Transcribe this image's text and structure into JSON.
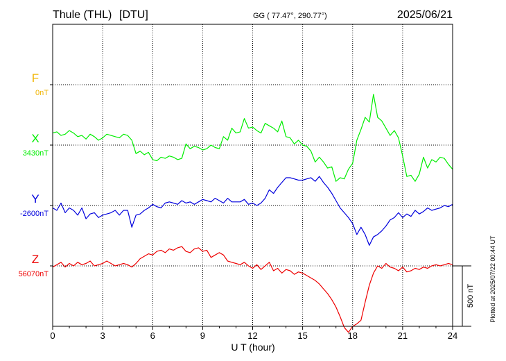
{
  "chart_data": {
    "type": "line",
    "station": "Thule (THL)",
    "institute": "[DTU]",
    "coordinates": "GG ( 77.47°, 290.77°)",
    "date": "2025/06/21",
    "xlabel": "U T (hour)",
    "xlim": [
      0,
      24
    ],
    "xticks": [
      "0",
      "3",
      "6",
      "9",
      "12",
      "15",
      "18",
      "21",
      "24"
    ],
    "scale_bar": {
      "label": "500 nT",
      "value_nT": 500
    },
    "plot_note": "Plotted at 2025/07/22 00:44 UT",
    "grid": true,
    "series": [
      {
        "name": "F",
        "baseline": "0nT",
        "color": "#f0b400",
        "values": []
      },
      {
        "name": "X",
        "baseline": "3430nT",
        "color": "#00ee00",
        "x": [
          0,
          0.25,
          0.5,
          0.75,
          1,
          1.25,
          1.5,
          1.75,
          2,
          2.25,
          2.5,
          2.75,
          3,
          3.25,
          3.5,
          3.75,
          4,
          4.25,
          4.5,
          4.75,
          5,
          5.25,
          5.5,
          5.75,
          6,
          6.25,
          6.5,
          6.75,
          7,
          7.25,
          7.5,
          7.75,
          8,
          8.25,
          8.5,
          8.75,
          9,
          9.25,
          9.5,
          9.75,
          10,
          10.25,
          10.5,
          10.75,
          11,
          11.25,
          11.5,
          11.75,
          12,
          12.25,
          12.5,
          12.75,
          13,
          13.25,
          13.5,
          13.75,
          14,
          14.25,
          14.5,
          14.75,
          15,
          15.25,
          15.5,
          15.75,
          16,
          16.25,
          16.5,
          16.75,
          17,
          17.25,
          17.5,
          17.75,
          18,
          18.25,
          18.5,
          18.75,
          19,
          19.25,
          19.5,
          19.75,
          20,
          20.25,
          20.5,
          20.75,
          21,
          21.25,
          21.5,
          21.75,
          22,
          22.25,
          22.5,
          22.75,
          23,
          23.25,
          23.5,
          23.75,
          24
        ],
        "values": [
          100,
          110,
          80,
          90,
          120,
          100,
          70,
          80,
          50,
          90,
          70,
          40,
          60,
          90,
          80,
          70,
          60,
          90,
          80,
          40,
          -70,
          -50,
          -80,
          -60,
          -120,
          -130,
          -100,
          -110,
          -90,
          -100,
          -120,
          -110,
          10,
          -30,
          -10,
          -20,
          -40,
          -30,
          0,
          -20,
          -30,
          70,
          40,
          140,
          100,
          110,
          220,
          140,
          150,
          120,
          100,
          180,
          160,
          140,
          110,
          200,
          70,
          60,
          10,
          40,
          0,
          -10,
          -50,
          -140,
          -100,
          -140,
          -190,
          -180,
          -300,
          -270,
          -280,
          -200,
          -150,
          40,
          130,
          230,
          190,
          420,
          230,
          200,
          140,
          80,
          120,
          60,
          -90,
          -260,
          -250,
          -300,
          -240,
          -100,
          -190,
          -120,
          -140,
          -100,
          -110,
          -160,
          -200
        ]
      },
      {
        "name": "Y",
        "baseline": "-2600nT",
        "color": "#0000dd",
        "x": [
          0,
          0.25,
          0.5,
          0.75,
          1,
          1.25,
          1.5,
          1.75,
          2,
          2.25,
          2.5,
          2.75,
          3,
          3.25,
          3.5,
          3.75,
          4,
          4.25,
          4.5,
          4.75,
          5,
          5.25,
          5.5,
          5.75,
          6,
          6.25,
          6.5,
          6.75,
          7,
          7.25,
          7.5,
          7.75,
          8,
          8.25,
          8.5,
          8.75,
          9,
          9.25,
          9.5,
          9.75,
          10,
          10.25,
          10.5,
          10.75,
          11,
          11.25,
          11.5,
          11.75,
          12,
          12.25,
          12.5,
          12.75,
          13,
          13.25,
          13.5,
          13.75,
          14,
          14.25,
          14.5,
          14.75,
          15,
          15.25,
          15.5,
          15.75,
          16,
          16.25,
          16.5,
          16.75,
          17,
          17.25,
          17.5,
          17.75,
          18,
          18.25,
          18.5,
          18.75,
          19,
          19.25,
          19.5,
          19.75,
          20,
          20.25,
          20.5,
          20.75,
          21,
          21.25,
          21.5,
          21.75,
          22,
          22.25,
          22.5,
          22.75,
          23,
          23.25,
          23.5,
          23.75,
          24
        ],
        "values": [
          -20,
          -40,
          20,
          -60,
          -20,
          -40,
          -80,
          -20,
          -110,
          -70,
          -60,
          -100,
          -80,
          -70,
          -60,
          -40,
          -80,
          -40,
          -40,
          -180,
          -80,
          -70,
          -40,
          -20,
          10,
          -10,
          -20,
          20,
          30,
          20,
          10,
          40,
          20,
          30,
          10,
          30,
          50,
          40,
          30,
          60,
          40,
          20,
          60,
          30,
          30,
          30,
          50,
          10,
          20,
          0,
          20,
          60,
          130,
          100,
          150,
          190,
          230,
          230,
          220,
          210,
          210,
          220,
          230,
          200,
          240,
          190,
          150,
          100,
          40,
          -20,
          -60,
          -100,
          -150,
          -240,
          -180,
          -240,
          -330,
          -260,
          -240,
          -210,
          -170,
          -120,
          -100,
          -60,
          -100,
          -70,
          -90,
          -40,
          -70,
          -50,
          -20,
          -40,
          -30,
          -20,
          0,
          -10,
          10
        ]
      },
      {
        "name": "Z",
        "baseline": "56070nT",
        "color": "#ee0000",
        "x": [
          0,
          0.25,
          0.5,
          0.75,
          1,
          1.25,
          1.5,
          1.75,
          2,
          2.25,
          2.5,
          2.75,
          3,
          3.25,
          3.5,
          3.75,
          4,
          4.25,
          4.5,
          4.75,
          5,
          5.25,
          5.5,
          5.75,
          6,
          6.25,
          6.5,
          6.75,
          7,
          7.25,
          7.5,
          7.75,
          8,
          8.25,
          8.5,
          8.75,
          9,
          9.25,
          9.5,
          9.75,
          10,
          10.25,
          10.5,
          10.75,
          11,
          11.25,
          11.5,
          11.75,
          12,
          12.25,
          12.5,
          12.75,
          13,
          13.25,
          13.5,
          13.75,
          14,
          14.25,
          14.5,
          14.75,
          15,
          15.25,
          15.5,
          15.75,
          16,
          16.25,
          16.5,
          16.75,
          17,
          17.25,
          17.5,
          17.75,
          18,
          18.25,
          18.5,
          18.75,
          19,
          19.25,
          19.5,
          19.75,
          20,
          20.25,
          20.5,
          20.75,
          21,
          21.25,
          21.5,
          21.75,
          22,
          22.25,
          22.5,
          22.75,
          23,
          23.25,
          23.5,
          23.75,
          24
        ],
        "values": [
          -10,
          10,
          30,
          -10,
          20,
          0,
          30,
          10,
          20,
          40,
          0,
          10,
          20,
          40,
          20,
          0,
          10,
          20,
          10,
          -10,
          20,
          60,
          80,
          100,
          90,
          120,
          130,
          110,
          140,
          130,
          150,
          160,
          120,
          110,
          140,
          150,
          120,
          130,
          70,
          90,
          110,
          90,
          40,
          30,
          20,
          10,
          30,
          0,
          -20,
          10,
          -30,
          0,
          30,
          -40,
          -20,
          -60,
          -30,
          -40,
          -70,
          -50,
          -60,
          -80,
          -100,
          -120,
          -150,
          -190,
          -230,
          -280,
          -340,
          -420,
          -510,
          -550,
          -500,
          -480,
          -450,
          -300,
          -160,
          -60,
          0,
          -20,
          20,
          -10,
          -20,
          -40,
          -10,
          -50,
          -40,
          -20,
          -30,
          -10,
          -20,
          0,
          10,
          0,
          10,
          20,
          10
        ]
      }
    ]
  }
}
